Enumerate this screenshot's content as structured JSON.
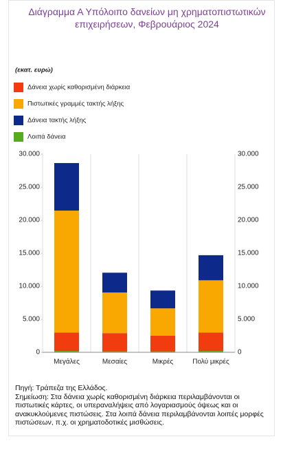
{
  "chart_data": {
    "type": "stacked-bar",
    "title": "Διάγραμμα Α Υπόλοιπο δανείων μη χρηματοπιστωτικών επιχειρήσεων, Φεβρουάριος 2024",
    "unit": "(εκατ. ευρώ)",
    "categories": [
      "Μεγάλες",
      "Μεσαίες",
      "Μικρές",
      "Πολύ μικρές"
    ],
    "series": [
      {
        "name": "Λοιπά δάνεια",
        "color": "#5aaa1e",
        "values": [
          200,
          150,
          150,
          200
        ]
      },
      {
        "name": "Δάνεια χωρίς καθορισμένη διάρκεια",
        "color": "#f03c0f",
        "values": [
          2800,
          2750,
          2350,
          2800
        ]
      },
      {
        "name": "Πιστωτικές γραμμές τακτής λήξης",
        "color": "#f8a800",
        "values": [
          18450,
          6150,
          4150,
          7900
        ]
      },
      {
        "name": "Δάνεια τακτής λήξης",
        "color": "#0d2a8a",
        "values": [
          7200,
          3000,
          2700,
          3800
        ]
      }
    ],
    "legend_order": [
      1,
      2,
      3,
      0
    ],
    "ylim": [
      0,
      30000
    ],
    "yticks": [
      0,
      {
        "value": 5000,
        "label": "5.000"
      },
      {
        "value": 10000,
        "label": "10.000"
      },
      {
        "value": 15000,
        "label": "15.000"
      },
      {
        "value": 20000,
        "label": "20.000"
      },
      {
        "value": 25000,
        "label": "25.000"
      },
      {
        "value": 30000,
        "label": "30.000"
      }
    ],
    "source": "Πηγή: Τράπεζα της Ελλάδος.",
    "note": "Σημείωση: Στα δάνεια χωρίς καθορισμένη διάρκεια περιλαμβάνονται οι πιστωτικές κάρτες, οι υπεραναλήψεις από λογαριασμούς όψεως και οι ανακυκλούμενες πιστώσεις. Στα λοιπά δάνεια περιλαμβάνονται λοιπές μορφές πιστώσεων, π.χ. οι χρηματοδοτικές μισθώσεις."
  }
}
